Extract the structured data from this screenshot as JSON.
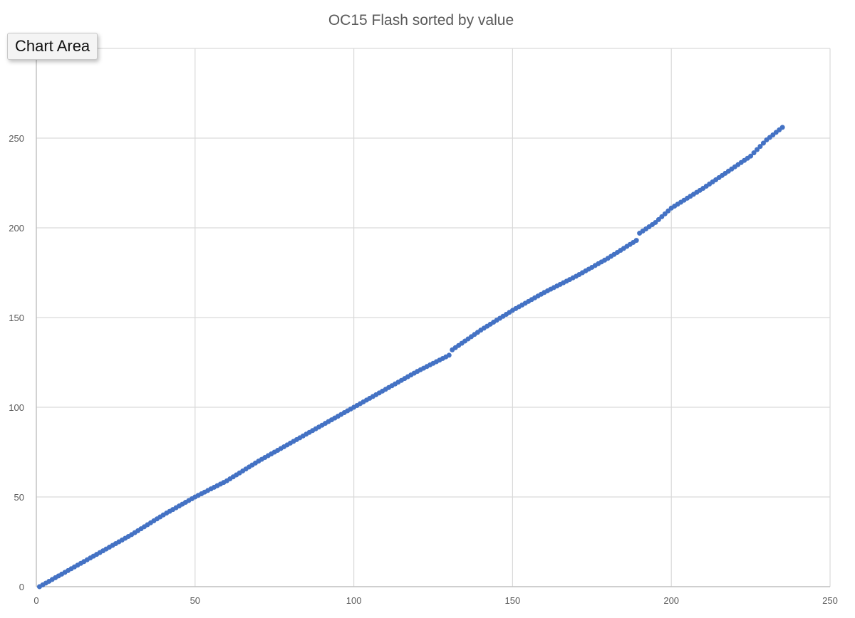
{
  "tooltip": {
    "label": "Chart Area"
  },
  "chart_data": {
    "type": "scatter",
    "title": "OC15 Flash sorted by value",
    "xlabel": "",
    "ylabel": "",
    "xlim": [
      0,
      250
    ],
    "ylim": [
      0,
      300
    ],
    "x_ticks": [
      0,
      50,
      100,
      150,
      200,
      250
    ],
    "y_ticks": [
      0,
      50,
      100,
      150,
      200,
      250
    ],
    "grid": true,
    "legend": "none",
    "series_color": "#4472c4",
    "grid_color": "#d9d9d9",
    "axis_color": "#bfbfbf",
    "series": [
      {
        "points": [
          [
            1,
            0
          ],
          [
            10,
            9
          ],
          [
            20,
            19
          ],
          [
            30,
            29
          ],
          [
            40,
            40
          ],
          [
            50,
            50
          ],
          [
            60,
            59
          ],
          [
            70,
            70
          ],
          [
            80,
            80
          ],
          [
            90,
            90
          ],
          [
            100,
            100
          ],
          [
            110,
            110
          ],
          [
            120,
            120
          ],
          [
            130,
            129
          ],
          [
            131,
            132
          ],
          [
            140,
            143
          ],
          [
            150,
            154
          ],
          [
            160,
            164
          ],
          [
            170,
            173
          ],
          [
            180,
            183
          ],
          [
            189,
            193
          ],
          [
            190,
            197
          ],
          [
            195,
            203
          ],
          [
            200,
            211
          ],
          [
            210,
            222
          ],
          [
            220,
            234
          ],
          [
            225,
            240
          ],
          [
            230,
            249
          ],
          [
            235,
            256
          ]
        ]
      }
    ]
  }
}
